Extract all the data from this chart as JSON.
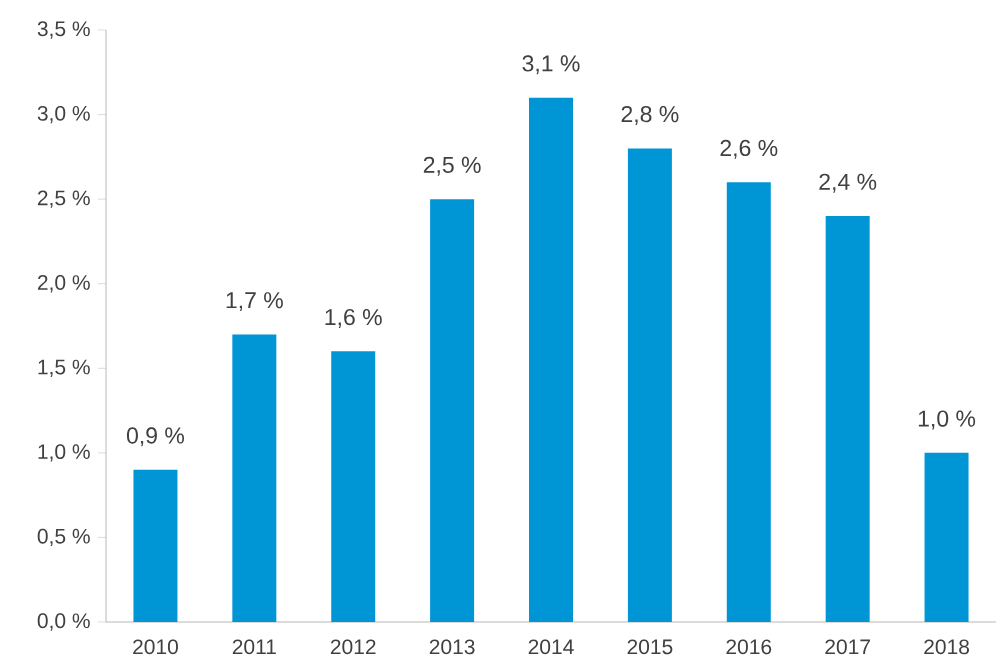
{
  "chart_data": {
    "type": "bar",
    "categories": [
      "2010",
      "2011",
      "2012",
      "2013",
      "2014",
      "2015",
      "2016",
      "2017",
      "2018"
    ],
    "values": [
      0.9,
      1.7,
      1.6,
      2.5,
      3.1,
      2.8,
      2.6,
      2.4,
      1.0
    ],
    "value_labels": [
      "0,9 %",
      "1,7 %",
      "1,6 %",
      "2,5 %",
      "3,1 %",
      "2,8 %",
      "2,6 %",
      "2,4 %",
      "1,0 %"
    ],
    "color": "#0096d6",
    "ylim": [
      0,
      3.5
    ],
    "yticks": [
      {
        "value": 0,
        "label": "0,0 %"
      },
      {
        "value": 0.5,
        "label": "0,5 %"
      },
      {
        "value": 1,
        "label": "1,0 %"
      },
      {
        "value": 1.5,
        "label": "1,5 %"
      },
      {
        "value": 2,
        "label": "2,0 %"
      },
      {
        "value": 2.5,
        "label": "2,5 %"
      },
      {
        "value": 3,
        "label": "3,0 %"
      },
      {
        "value": 3.5,
        "label": "3,5 %"
      }
    ]
  }
}
